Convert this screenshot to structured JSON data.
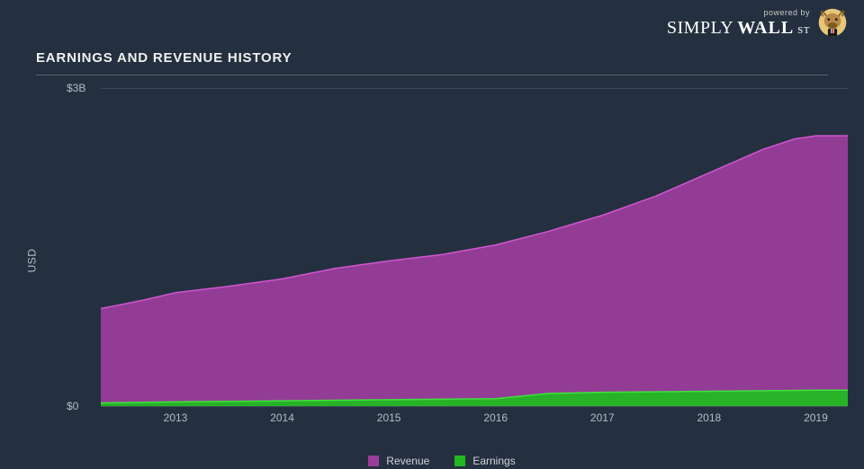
{
  "brand": {
    "powered_by": "powered by",
    "simply": "SIMPLY",
    "wall": "WALL",
    "st": "ST"
  },
  "chart": {
    "type": "area",
    "title": "EARNINGS AND REVENUE HISTORY",
    "y_axis_label": "USD",
    "background_color": "#24303f",
    "grid_color": "#3e4a59",
    "text_color": "#b7bcc3",
    "title_color": "#f1f1f1",
    "title_fontsize": 15,
    "label_fontsize": 12,
    "x_domain": [
      2012.3,
      2019.3
    ],
    "y_domain": [
      0,
      3.0
    ],
    "y_ticks": [
      {
        "value": 0.0,
        "label": "$0"
      },
      {
        "value": 3.0,
        "label": "$3B"
      }
    ],
    "x_ticks": [
      {
        "value": 2013,
        "label": "2013"
      },
      {
        "value": 2014,
        "label": "2014"
      },
      {
        "value": 2015,
        "label": "2015"
      },
      {
        "value": 2016,
        "label": "2016"
      },
      {
        "value": 2017,
        "label": "2017"
      },
      {
        "value": 2018,
        "label": "2018"
      },
      {
        "value": 2019,
        "label": "2019"
      }
    ],
    "series": [
      {
        "key": "revenue",
        "label": "Revenue",
        "fill": "#9a3d9a",
        "fill_opacity": 0.95,
        "stroke": "#d056d0",
        "stroke_width": 1.5,
        "points": [
          {
            "x": 2012.3,
            "y": 0.92
          },
          {
            "x": 2012.7,
            "y": 1.0
          },
          {
            "x": 2013.0,
            "y": 1.07
          },
          {
            "x": 2013.5,
            "y": 1.13
          },
          {
            "x": 2014.0,
            "y": 1.2
          },
          {
            "x": 2014.5,
            "y": 1.3
          },
          {
            "x": 2015.0,
            "y": 1.37
          },
          {
            "x": 2015.5,
            "y": 1.43
          },
          {
            "x": 2016.0,
            "y": 1.52
          },
          {
            "x": 2016.5,
            "y": 1.65
          },
          {
            "x": 2017.0,
            "y": 1.8
          },
          {
            "x": 2017.5,
            "y": 1.98
          },
          {
            "x": 2018.0,
            "y": 2.2
          },
          {
            "x": 2018.5,
            "y": 2.42
          },
          {
            "x": 2018.8,
            "y": 2.52
          },
          {
            "x": 2019.0,
            "y": 2.55
          },
          {
            "x": 2019.3,
            "y": 2.55
          }
        ]
      },
      {
        "key": "earnings",
        "label": "Earnings",
        "fill": "#22b822",
        "fill_opacity": 0.95,
        "stroke": "#3fe23f",
        "stroke_width": 1.5,
        "points": [
          {
            "x": 2012.3,
            "y": 0.03
          },
          {
            "x": 2013.0,
            "y": 0.04
          },
          {
            "x": 2014.0,
            "y": 0.05
          },
          {
            "x": 2015.0,
            "y": 0.06
          },
          {
            "x": 2016.0,
            "y": 0.07
          },
          {
            "x": 2016.5,
            "y": 0.12
          },
          {
            "x": 2017.0,
            "y": 0.13
          },
          {
            "x": 2018.0,
            "y": 0.14
          },
          {
            "x": 2019.0,
            "y": 0.15
          },
          {
            "x": 2019.3,
            "y": 0.15
          }
        ]
      }
    ],
    "legend": {
      "items": [
        {
          "label": "Revenue",
          "color": "#9a3d9a"
        },
        {
          "label": "Earnings",
          "color": "#22b822"
        }
      ]
    }
  }
}
